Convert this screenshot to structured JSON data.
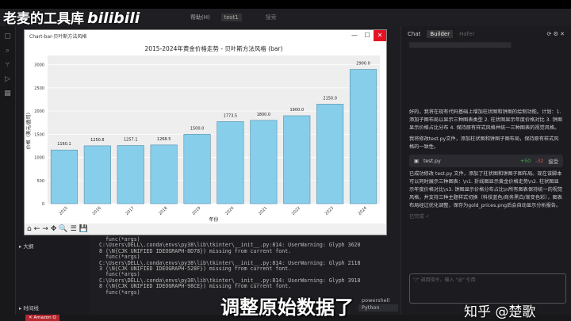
{
  "watermark": {
    "channel": "老麦的工具库",
    "logo": "bilibili"
  },
  "menubar": {
    "items": [
      "帮助(H)"
    ],
    "tab": "test1",
    "search": "搜索"
  },
  "sidebar": {
    "items": [
      "大纲",
      "时间线"
    ]
  },
  "chart_window": {
    "title": "Chart-bar-贝叶斯方法风格",
    "min": "—",
    "max": "☐",
    "close": "✕",
    "toolbar": [
      "⌂",
      "←",
      "→",
      "✥",
      "🔍",
      "☰",
      "💾"
    ]
  },
  "chart_data": {
    "type": "bar",
    "title": "2015-2024年黄金价格走势 - 贝叶斯方法风格 (bar)",
    "xlabel": "年份",
    "ylabel": "价格（美元/盎司）",
    "categories": [
      "2015",
      "2016",
      "2017",
      "2018",
      "2019",
      "2020",
      "2021",
      "2022",
      "2023",
      "2024"
    ],
    "values": [
      1160.1,
      1250.8,
      1257.1,
      1268.5,
      1500.0,
      1773.5,
      1800.0,
      1900.0,
      2150.0,
      2900.0
    ],
    "data_labels": [
      "1160.1",
      "1250.8",
      "1257.1",
      "1268.5",
      "1500.0",
      "1773.5",
      "1800.0",
      "1900.0",
      "2150.0",
      "2900.0"
    ],
    "ylim": [
      0,
      3200
    ],
    "yticks": [
      0,
      500,
      1000,
      1500,
      2000,
      2500,
      3000
    ],
    "bar_color": "#87ceeb",
    "background": "#eeeeee",
    "grid": true
  },
  "terminal": {
    "lines": [
      "  func(*args)",
      "C:\\Users\\DELL\\.conda\\envs\\py38\\lib\\tkinter\\__init__.py:814: UserWarning: Glyph 3620",
      "8 (\\N{CJK UNIFIED IDEOGRAPH-8D78}) missing from current font.",
      "  func(*args)",
      "C:\\Users\\DELL\\.conda\\envs\\py38\\lib\\tkinter\\__init__.py:814: UserWarning: Glyph 2118",
      "3 (\\N{CJK UNIFIED IDEOGRAPH-528F}) missing from current font.",
      "  func(*args)",
      "C:\\Users\\DELL\\.conda\\envs\\py38\\lib\\tkinter\\__init__.py:814: UserWarning: Glyph 3918",
      "8 (\\N{CJK UNIFIED IDEOGRAPH-98CE}) missing from current font.",
      "  func(*args)"
    ],
    "sessions": [
      "powershell",
      "Python"
    ]
  },
  "right_panel": {
    "tabs": [
      "Chat",
      "Builder",
      "Hafer"
    ],
    "paragraphs": [
      "好的，我将在现有代码基础上增加柱状图和饼图的绘制功能。计划：1. 添加子图布局以显示三种图表类型 2. 柱状图显示年度价格对比 3. 饼图显示价格占比分布 4. 保持原有样式风格并统一三种图表的视觉风格。",
      "我将修改test.py文件，添加柱状图和饼图子图布局，保持原有样式风格的一致性。"
    ],
    "file_chip": {
      "name": "test.py",
      "added": "+50",
      "removed": "-32",
      "action": "接受"
    },
    "result": "已成功修改 test.py 文件，添加了柱状图和饼图子图布局。现在该脚本可以同时展示三种图表：\\n1. 折线图显示黄金价格走势\\n2. 柱状图显示年度价格对比\\n3. 饼图显示价格分布占比\\n所有图表保持统一的视觉风格，并支持三种主题样式切换（科技蓝色/商务黑白/渐变色彩），图表布局经过优化调整，保存为gold_prices.png后会自动显示分析报告。",
    "done": "已完成 ✓",
    "input_placeholder": "\"/\" 调用指令，输入 \"@\" 引用",
    "accent": "#e81123"
  },
  "status": {
    "amazon_q": "✕ Amazon Q"
  },
  "overlay": {
    "subtitle": "调整原始数据了",
    "zhihu": "知乎 @楚歌"
  }
}
